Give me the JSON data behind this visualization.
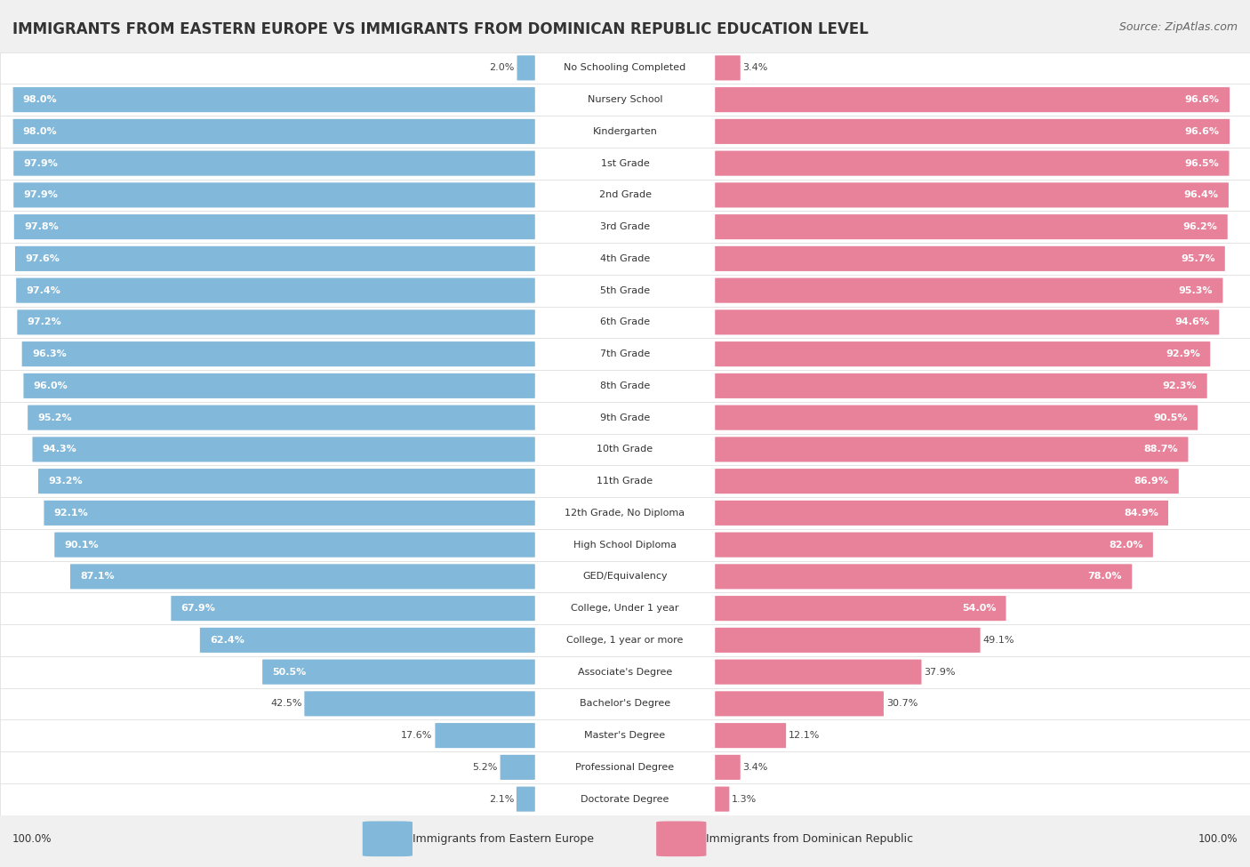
{
  "title": "IMMIGRANTS FROM EASTERN EUROPE VS IMMIGRANTS FROM DOMINICAN REPUBLIC EDUCATION LEVEL",
  "source": "Source: ZipAtlas.com",
  "categories": [
    "No Schooling Completed",
    "Nursery School",
    "Kindergarten",
    "1st Grade",
    "2nd Grade",
    "3rd Grade",
    "4th Grade",
    "5th Grade",
    "6th Grade",
    "7th Grade",
    "8th Grade",
    "9th Grade",
    "10th Grade",
    "11th Grade",
    "12th Grade, No Diploma",
    "High School Diploma",
    "GED/Equivalency",
    "College, Under 1 year",
    "College, 1 year or more",
    "Associate's Degree",
    "Bachelor's Degree",
    "Master's Degree",
    "Professional Degree",
    "Doctorate Degree"
  ],
  "eastern_europe": [
    2.0,
    98.0,
    98.0,
    97.9,
    97.9,
    97.8,
    97.6,
    97.4,
    97.2,
    96.3,
    96.0,
    95.2,
    94.3,
    93.2,
    92.1,
    90.1,
    87.1,
    67.9,
    62.4,
    50.5,
    42.5,
    17.6,
    5.2,
    2.1
  ],
  "dominican_republic": [
    3.4,
    96.6,
    96.6,
    96.5,
    96.4,
    96.2,
    95.7,
    95.3,
    94.6,
    92.9,
    92.3,
    90.5,
    88.7,
    86.9,
    84.9,
    82.0,
    78.0,
    54.0,
    49.1,
    37.9,
    30.7,
    12.1,
    3.4,
    1.3
  ],
  "blue_color": "#82B8D9",
  "pink_color": "#E8829A",
  "bg_color": "#F0F0F0",
  "row_bg_color": "#FFFFFF",
  "row_alt_bg_color": "#F8F8F8",
  "legend_label_blue": "Immigrants from Eastern Europe",
  "legend_label_pink": "Immigrants from Dominican Republic",
  "title_fontsize": 12,
  "source_fontsize": 9,
  "value_fontsize": 8,
  "cat_fontsize": 8
}
